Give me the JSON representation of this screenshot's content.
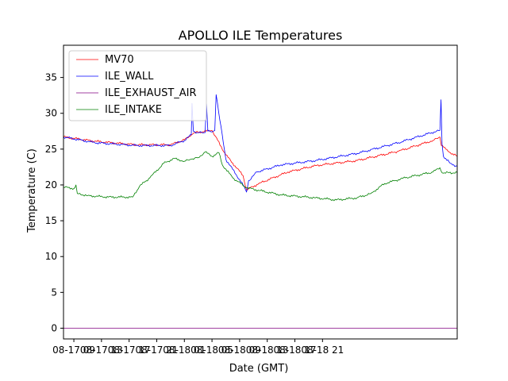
{
  "chart_data": {
    "type": "line",
    "title": "APOLLO ILE Temperatures",
    "xlabel": "Date (GMT)",
    "ylabel": "Temperature (C)",
    "xlim": [
      -1.5,
      55.5
    ],
    "ylim": [
      -1.5,
      39.5
    ],
    "x_unit": "hours since 08-17 09:00 GMT",
    "xticks": [
      {
        "x": 0,
        "label": "08-17 09"
      },
      {
        "x": 4,
        "label": "08-17 13"
      },
      {
        "x": 8,
        "label": "08-17 17"
      },
      {
        "x": 12,
        "label": "08-17 21"
      },
      {
        "x": 16,
        "label": "08-18 01"
      },
      {
        "x": 20,
        "label": "08-18 05"
      },
      {
        "x": 24,
        "label": "08-18 09"
      },
      {
        "x": 28,
        "label": "08-18 13"
      },
      {
        "x": 32,
        "label": "08-18 17"
      },
      {
        "x": 36,
        "label": "08-18 21"
      }
    ],
    "yticks": [
      0,
      5,
      10,
      15,
      20,
      25,
      30,
      35
    ],
    "legend": {
      "position": "top-left"
    },
    "series": [
      {
        "name": "MV70",
        "color": "#ff0000",
        "x": [
          -1.5,
          3,
          9,
          14,
          16,
          16.2,
          17.5,
          20,
          22,
          24.5,
          25,
          27,
          31,
          35,
          41,
          47,
          52,
          53,
          53.2,
          54.5,
          55.5
        ],
        "y": [
          26.7,
          26.1,
          25.6,
          25.6,
          26.3,
          26.5,
          27.3,
          27.6,
          24.2,
          21.3,
          19.3,
          20.3,
          21.8,
          22.7,
          23.4,
          24.7,
          26.2,
          26.7,
          25.5,
          24.5,
          24.0
        ]
      },
      {
        "name": "ILE_WALL",
        "color": "#0000ff",
        "x": [
          -1.5,
          3,
          9,
          14,
          16,
          17,
          17.1,
          17.3,
          18,
          19,
          19.2,
          19.4,
          20,
          20.4,
          20.6,
          22,
          24.5,
          25,
          25.3,
          26.5,
          30,
          35,
          41,
          47,
          52.5,
          53,
          53.15,
          53.3,
          53.5,
          54.5,
          55.5
        ],
        "y": [
          26.7,
          25.9,
          25.5,
          25.5,
          26.2,
          27.0,
          31.4,
          27.5,
          27.3,
          27.3,
          31.4,
          27.5,
          27.4,
          27.6,
          32.6,
          23.6,
          20.0,
          19.0,
          20.6,
          21.8,
          22.8,
          23.4,
          24.4,
          25.9,
          27.5,
          27.6,
          31.9,
          25.7,
          24.0,
          23.0,
          22.6
        ]
      },
      {
        "name": "ILE_EXHAUST_AIR",
        "color": "#800080",
        "x": [
          -1.5,
          55.5
        ],
        "y": [
          0,
          0
        ]
      },
      {
        "name": "ILE_INTAKE",
        "color": "#008000",
        "x": [
          -1.5,
          0,
          0.3,
          0.5,
          2,
          5,
          8.5,
          9.5,
          11,
          13,
          14.5,
          16,
          17,
          18,
          19,
          20,
          21,
          21.5,
          23,
          25,
          30,
          35,
          38,
          41,
          43,
          45,
          46.5,
          48,
          52,
          53,
          53.3,
          55.5
        ],
        "y": [
          19.7,
          19.5,
          20.0,
          18.8,
          18.5,
          18.3,
          18.3,
          19.8,
          21.0,
          23.0,
          23.7,
          23.3,
          23.6,
          23.8,
          24.6,
          24.0,
          24.5,
          22.8,
          21.0,
          19.6,
          18.6,
          18.2,
          17.9,
          18.2,
          18.8,
          20.2,
          20.6,
          21.0,
          21.8,
          22.4,
          21.7,
          21.7
        ]
      }
    ]
  }
}
